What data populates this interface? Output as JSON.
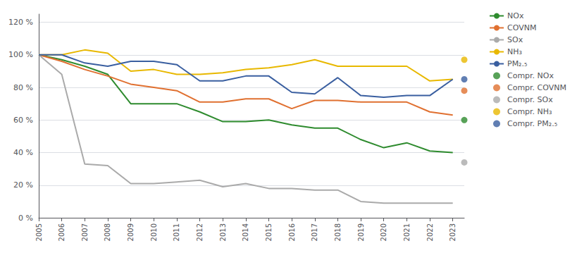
{
  "chart_data": {
    "type": "line",
    "x": [
      2005,
      2006,
      2007,
      2008,
      2009,
      2010,
      2011,
      2012,
      2013,
      2014,
      2015,
      2016,
      2017,
      2018,
      2019,
      2020,
      2021,
      2022,
      2023
    ],
    "xlim": [
      2005,
      2023.5
    ],
    "xticks": [
      2005,
      2006,
      2007,
      2008,
      2009,
      2010,
      2011,
      2012,
      2013,
      2014,
      2015,
      2016,
      2017,
      2018,
      2019,
      2020,
      2021,
      2022,
      2023
    ],
    "ylim": [
      0,
      125
    ],
    "yticks": [
      {
        "value": 0,
        "label": "0 %"
      },
      {
        "value": 20,
        "label": "20 %"
      },
      {
        "value": 40,
        "label": "40 %"
      },
      {
        "value": 60,
        "label": "60 %"
      },
      {
        "value": 80,
        "label": "80 %"
      },
      {
        "value": 100,
        "label": "100 %"
      },
      {
        "value": 120,
        "label": "120 %"
      }
    ],
    "grid": true,
    "legend": "right",
    "series": [
      {
        "name": "NOx",
        "type": "line",
        "color": "#2e8b2e",
        "values": [
          100,
          97,
          93,
          88,
          70,
          70,
          70,
          65,
          59,
          59,
          60,
          57,
          55,
          55,
          48,
          43,
          46,
          41,
          40
        ]
      },
      {
        "name": "COVNM",
        "type": "line",
        "color": "#e07030",
        "values": [
          100,
          96,
          91,
          87,
          82,
          80,
          78,
          71,
          71,
          73,
          73,
          67,
          72,
          72,
          71,
          71,
          71,
          65,
          63
        ]
      },
      {
        "name": "SOx",
        "type": "line",
        "color": "#aaaaaa",
        "values": [
          100,
          88,
          33,
          32,
          21,
          21,
          22,
          23,
          19,
          21,
          18,
          18,
          17,
          17,
          10,
          9,
          9,
          9,
          9
        ]
      },
      {
        "name": "NH₃",
        "type": "line",
        "color": "#e8b800",
        "values": [
          100,
          100,
          103,
          101,
          90,
          91,
          88,
          88,
          89,
          91,
          92,
          94,
          97,
          93,
          93,
          93,
          93,
          84,
          85
        ]
      },
      {
        "name": "PM₂.₅",
        "type": "line",
        "color": "#3a5fa0",
        "values": [
          100,
          100,
          95,
          93,
          96,
          96,
          94,
          84,
          84,
          87,
          87,
          77,
          76,
          86,
          75,
          74,
          75,
          75,
          85
        ]
      },
      {
        "name": "Compr. NOx",
        "type": "scatter",
        "color": "#2e8b2e",
        "x": [
          2023.5
        ],
        "values": [
          60
        ]
      },
      {
        "name": "Compr. COVNM",
        "type": "scatter",
        "color": "#e07030",
        "x": [
          2023.5
        ],
        "values": [
          78
        ]
      },
      {
        "name": "Compr. SOx",
        "type": "scatter",
        "color": "#aaaaaa",
        "x": [
          2023.5
        ],
        "values": [
          34
        ]
      },
      {
        "name": "Compr. NH₃",
        "type": "scatter",
        "color": "#e8b800",
        "x": [
          2023.5
        ],
        "values": [
          97
        ]
      },
      {
        "name": "Compr. PM₂.₅",
        "type": "scatter",
        "color": "#3a5fa0",
        "x": [
          2023.5
        ],
        "values": [
          85
        ]
      }
    ]
  }
}
